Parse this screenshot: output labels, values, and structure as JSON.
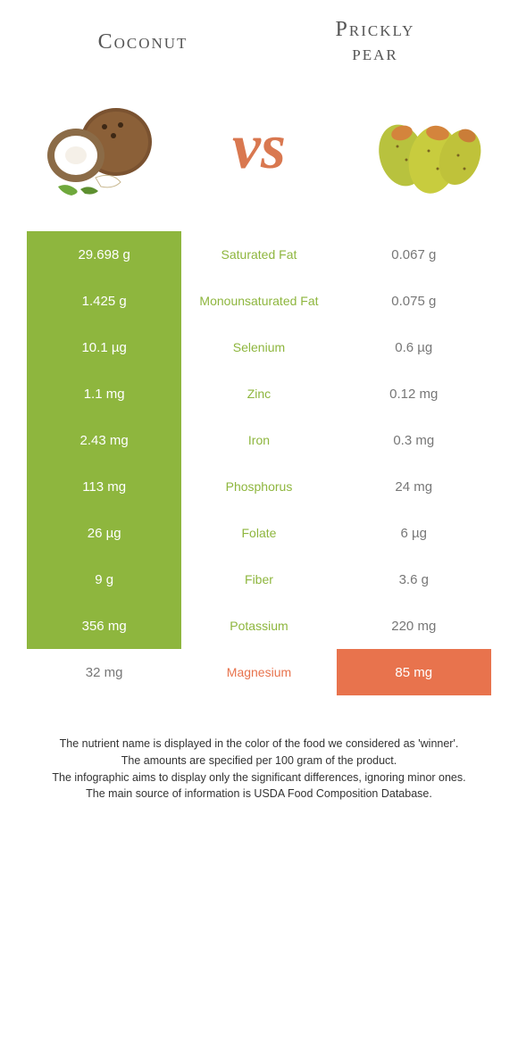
{
  "header": {
    "left_title": "Coconut",
    "right_title": "Prickly\npear",
    "vs_label": "vs"
  },
  "colors": {
    "left_food": "#8eb63e",
    "right_food": "#e8734d",
    "mid_left_text": "#8eb63e",
    "mid_right_text": "#e8734d"
  },
  "rows": [
    {
      "nutrient": "Saturated Fat",
      "left": "29.698 g",
      "right": "0.067 g",
      "winner": "left"
    },
    {
      "nutrient": "Monounsaturated Fat",
      "left": "1.425 g",
      "right": "0.075 g",
      "winner": "left"
    },
    {
      "nutrient": "Selenium",
      "left": "10.1 µg",
      "right": "0.6 µg",
      "winner": "left"
    },
    {
      "nutrient": "Zinc",
      "left": "1.1 mg",
      "right": "0.12 mg",
      "winner": "left"
    },
    {
      "nutrient": "Iron",
      "left": "2.43 mg",
      "right": "0.3 mg",
      "winner": "left"
    },
    {
      "nutrient": "Phosphorus",
      "left": "113 mg",
      "right": "24 mg",
      "winner": "left"
    },
    {
      "nutrient": "Folate",
      "left": "26 µg",
      "right": "6 µg",
      "winner": "left"
    },
    {
      "nutrient": "Fiber",
      "left": "9 g",
      "right": "3.6 g",
      "winner": "left"
    },
    {
      "nutrient": "Potassium",
      "left": "356 mg",
      "right": "220 mg",
      "winner": "left"
    },
    {
      "nutrient": "Magnesium",
      "left": "32 mg",
      "right": "85 mg",
      "winner": "right"
    }
  ],
  "footnotes": [
    "The nutrient name is displayed in the color of the food we considered as 'winner'.",
    "The amounts are specified per 100 gram of the product.",
    "The infographic aims to display only the significant differences, ignoring minor ones.",
    "The main source of information is USDA Food Composition Database."
  ]
}
